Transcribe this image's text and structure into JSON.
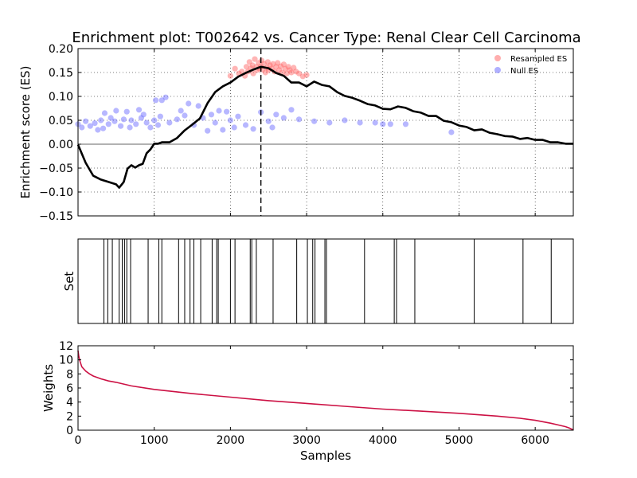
{
  "chart_data": [
    {
      "type": "line",
      "title": "Enrichment plot: T002642 vs. Cancer Type: Renal Clear Cell Carcinoma",
      "xlabel": "",
      "ylabel": "Enrichment score (ES)",
      "xlim": [
        0,
        6500
      ],
      "ylim": [
        -0.15,
        0.2
      ],
      "yticks": [
        -0.15,
        -0.1,
        -0.05,
        0.0,
        0.05,
        0.1,
        0.15,
        0.2
      ],
      "ytick_labels": [
        "−0.15",
        "−0.10",
        "−0.05",
        "0.00",
        "0.05",
        "0.10",
        "0.15",
        "0.20"
      ],
      "xticks": [
        0,
        1000,
        2000,
        3000,
        4000,
        5000,
        6000
      ],
      "grid": true,
      "legend": {
        "position": "top-right",
        "entries": [
          "Resampled ES",
          "Null ES"
        ]
      },
      "vline_x": 2400,
      "running_es": {
        "x": [
          0,
          100,
          200,
          300,
          400,
          500,
          540,
          600,
          650,
          700,
          750,
          800,
          850,
          900,
          950,
          1000,
          1050,
          1100,
          1200,
          1300,
          1400,
          1500,
          1600,
          1700,
          1800,
          1900,
          2000,
          2100,
          2200,
          2300,
          2400,
          2500,
          2600,
          2700,
          2800,
          2900,
          3000,
          3100,
          3200,
          3300,
          3400,
          3500,
          3600,
          3700,
          3800,
          3900,
          4000,
          4100,
          4200,
          4300,
          4400,
          4500,
          4600,
          4700,
          4800,
          4900,
          5000,
          5100,
          5200,
          5300,
          5400,
          5500,
          5600,
          5700,
          5800,
          5900,
          6000,
          6100,
          6200,
          6300,
          6400,
          6500
        ],
        "y": [
          0.0,
          -0.04,
          -0.065,
          -0.075,
          -0.078,
          -0.085,
          -0.09,
          -0.08,
          -0.05,
          -0.045,
          -0.048,
          -0.045,
          -0.04,
          -0.02,
          -0.01,
          0.0,
          0.002,
          0.003,
          0.005,
          0.012,
          0.03,
          0.04,
          0.055,
          0.085,
          0.11,
          0.12,
          0.13,
          0.14,
          0.15,
          0.155,
          0.163,
          0.158,
          0.15,
          0.142,
          0.13,
          0.128,
          0.122,
          0.13,
          0.125,
          0.12,
          0.11,
          0.1,
          0.098,
          0.09,
          0.085,
          0.08,
          0.075,
          0.072,
          0.08,
          0.075,
          0.07,
          0.065,
          0.06,
          0.058,
          0.05,
          0.045,
          0.04,
          0.035,
          0.03,
          0.03,
          0.025,
          0.02,
          0.018,
          0.015,
          0.012,
          0.012,
          0.01,
          0.008,
          0.005,
          0.003,
          0.002,
          0.0
        ]
      },
      "resampled_es": {
        "name": "Resampled ES",
        "color": "#ff6b6b",
        "x": [
          2000,
          2060,
          2110,
          2150,
          2190,
          2210,
          2230,
          2250,
          2270,
          2290,
          2300,
          2320,
          2340,
          2350,
          2370,
          2380,
          2400,
          2410,
          2420,
          2440,
          2460,
          2480,
          2490,
          2500,
          2520,
          2540,
          2560,
          2580,
          2600,
          2620,
          2640,
          2660,
          2680,
          2700,
          2720,
          2740,
          2760,
          2780,
          2800,
          2830,
          2860,
          2900,
          2950,
          3000
        ],
        "y": [
          0.143,
          0.158,
          0.148,
          0.152,
          0.143,
          0.162,
          0.152,
          0.172,
          0.159,
          0.165,
          0.148,
          0.178,
          0.162,
          0.155,
          0.17,
          0.158,
          0.163,
          0.175,
          0.156,
          0.168,
          0.15,
          0.16,
          0.172,
          0.155,
          0.165,
          0.158,
          0.168,
          0.152,
          0.162,
          0.17,
          0.155,
          0.163,
          0.15,
          0.167,
          0.158,
          0.148,
          0.162,
          0.155,
          0.15,
          0.16,
          0.152,
          0.148,
          0.142,
          0.145
        ]
      },
      "null_es": {
        "name": "Null ES",
        "color": "#7070ff",
        "x": [
          0,
          50,
          100,
          160,
          220,
          260,
          300,
          330,
          350,
          400,
          430,
          480,
          500,
          560,
          600,
          640,
          680,
          700,
          760,
          800,
          830,
          860,
          900,
          950,
          1000,
          1020,
          1050,
          1080,
          1100,
          1150,
          1200,
          1300,
          1350,
          1400,
          1450,
          1520,
          1580,
          1640,
          1700,
          1750,
          1800,
          1850,
          1900,
          1950,
          2000,
          2050,
          2100,
          2200,
          2300,
          2400,
          2500,
          2550,
          2600,
          2700,
          2800,
          2900,
          3100,
          3300,
          3500,
          3700,
          3900,
          4000,
          4100,
          4300,
          4900
        ],
        "y": [
          0.042,
          0.035,
          0.048,
          0.038,
          0.044,
          0.03,
          0.05,
          0.033,
          0.065,
          0.042,
          0.055,
          0.048,
          0.07,
          0.038,
          0.052,
          0.068,
          0.035,
          0.05,
          0.042,
          0.072,
          0.055,
          0.062,
          0.045,
          0.035,
          0.05,
          0.092,
          0.04,
          0.058,
          0.092,
          0.098,
          0.045,
          0.052,
          0.07,
          0.06,
          0.085,
          0.04,
          0.08,
          0.055,
          0.028,
          0.062,
          0.045,
          0.07,
          0.03,
          0.068,
          0.05,
          0.035,
          0.058,
          0.04,
          0.032,
          0.067,
          0.048,
          0.035,
          0.062,
          0.055,
          0.072,
          0.052,
          0.048,
          0.045,
          0.05,
          0.045,
          0.045,
          0.042,
          0.042,
          0.042,
          0.025
        ]
      }
    },
    {
      "type": "bar",
      "xlabel": "",
      "ylabel": "Set",
      "xlim": [
        0,
        6500
      ],
      "hit_positions": [
        340,
        390,
        450,
        540,
        580,
        610,
        640,
        690,
        920,
        1060,
        1100,
        1320,
        1400,
        1470,
        1520,
        1610,
        1760,
        1820,
        1840,
        2000,
        2060,
        2260,
        2280,
        2340,
        2560,
        2870,
        3010,
        3080,
        3110,
        3240,
        3260,
        3760,
        4150,
        4180,
        4420,
        5200,
        5840,
        6210
      ]
    },
    {
      "type": "line",
      "xlabel": "Samples",
      "ylabel": "Weights",
      "xlim": [
        0,
        6500
      ],
      "ylim": [
        0,
        12
      ],
      "yticks": [
        0,
        2,
        4,
        6,
        8,
        10,
        12
      ],
      "xticks": [
        0,
        1000,
        2000,
        3000,
        4000,
        5000,
        6000
      ],
      "color": "#cc1144",
      "x": [
        0,
        10,
        25,
        50,
        100,
        150,
        200,
        300,
        400,
        500,
        700,
        1000,
        1500,
        2000,
        2500,
        3000,
        3500,
        4000,
        4500,
        5000,
        5500,
        5800,
        6000,
        6200,
        6300,
        6400,
        6450,
        6500
      ],
      "y": [
        11.3,
        10.5,
        9.8,
        9.0,
        8.4,
        8.0,
        7.7,
        7.3,
        7.0,
        6.8,
        6.3,
        5.8,
        5.2,
        4.7,
        4.2,
        3.8,
        3.4,
        3.0,
        2.7,
        2.4,
        2.0,
        1.7,
        1.4,
        1.0,
        0.75,
        0.5,
        0.3,
        0.05
      ]
    }
  ]
}
